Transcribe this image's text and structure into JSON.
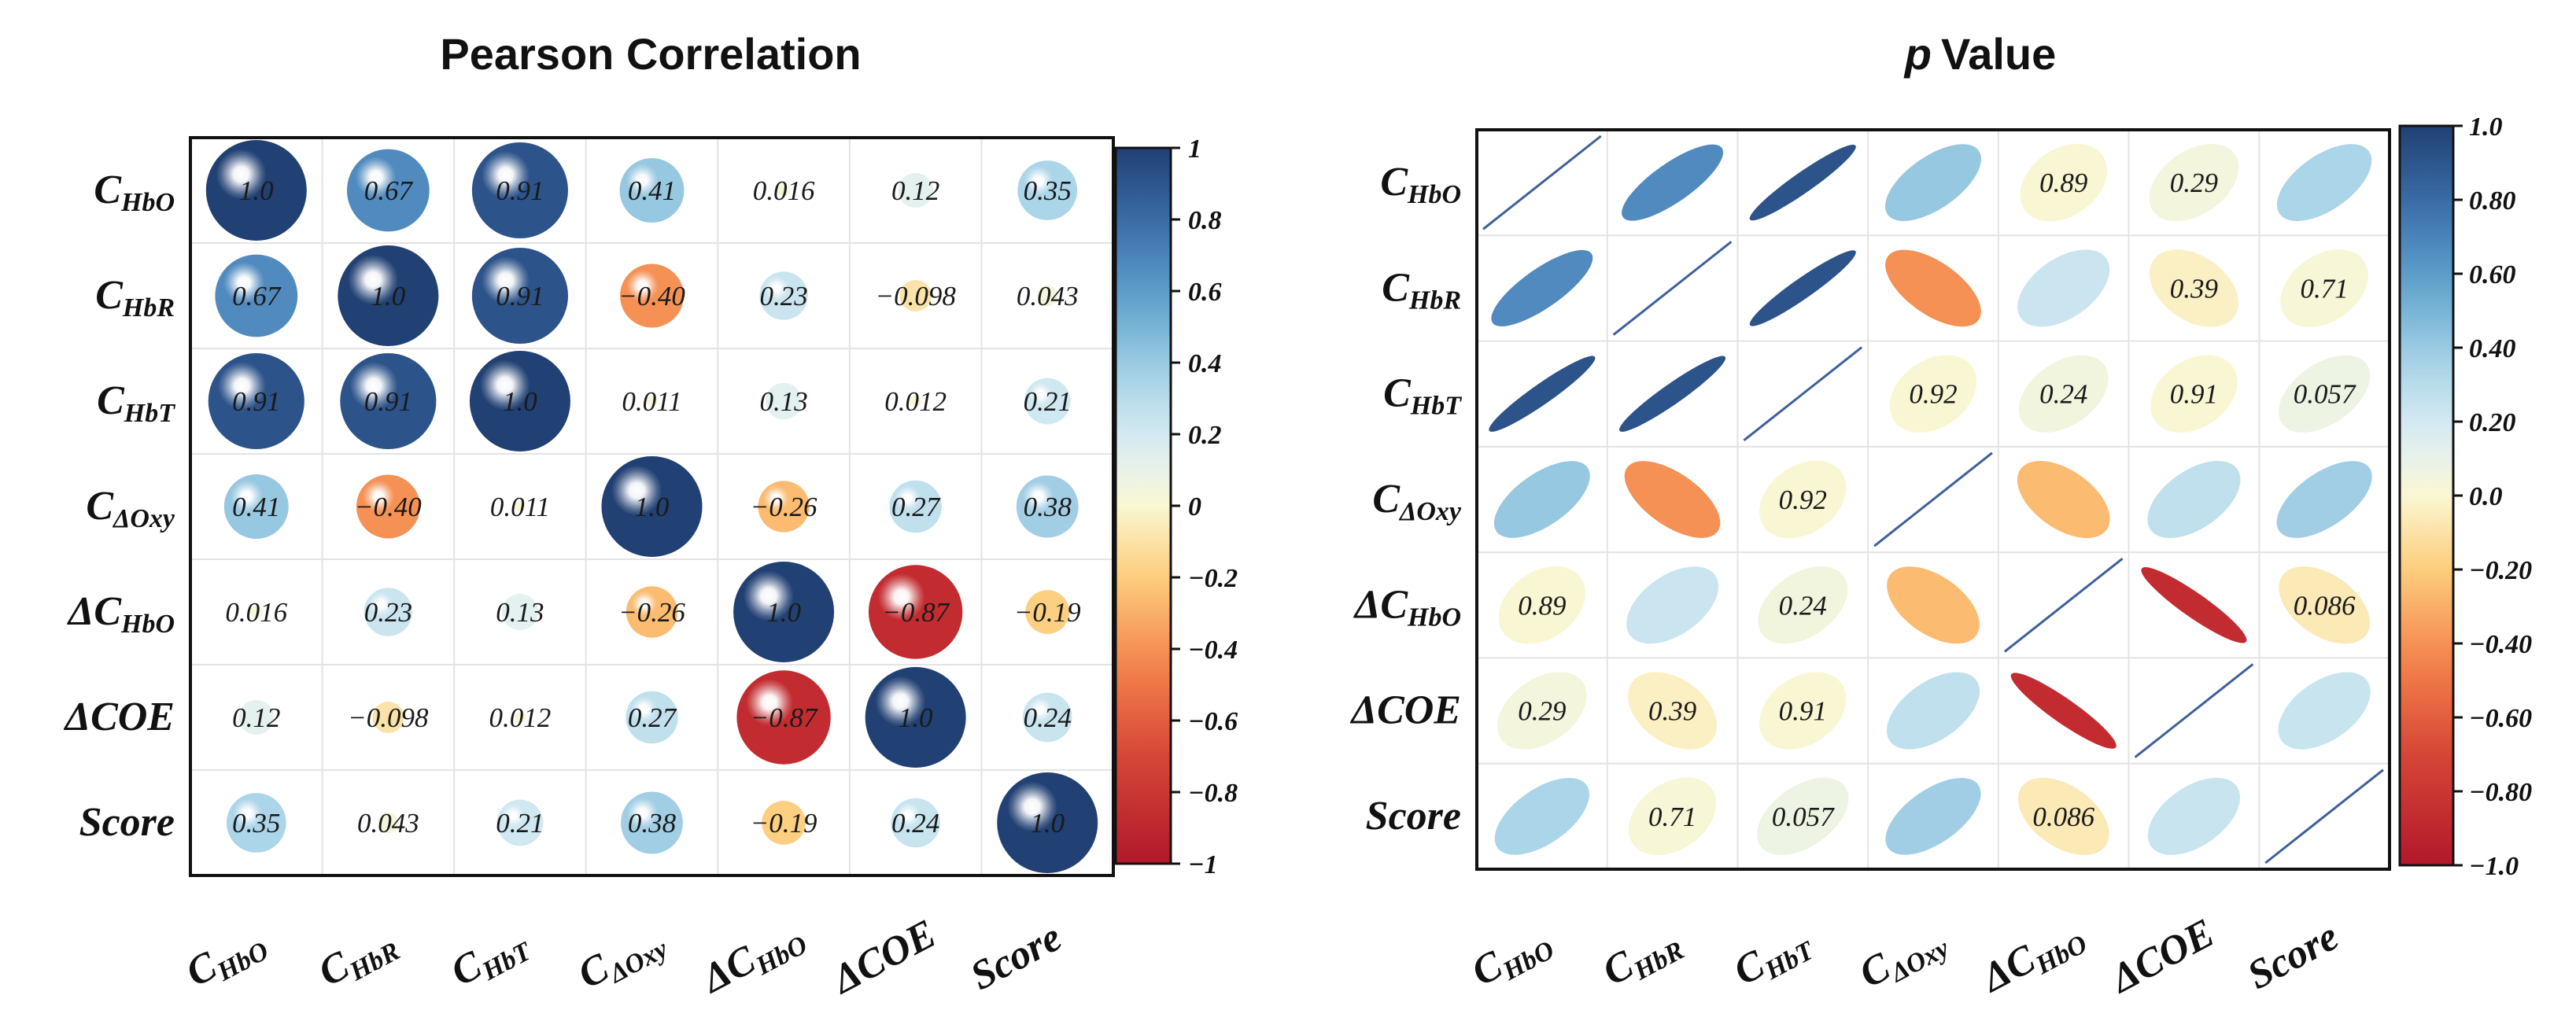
{
  "chart_data": [
    {
      "type": "heatmap",
      "title": "Pearson Correlation",
      "variables": [
        {
          "main": "C",
          "sub": "HbO",
          "prefix": ""
        },
        {
          "main": "C",
          "sub": "HbR",
          "prefix": ""
        },
        {
          "main": "C",
          "sub": "HbT",
          "prefix": ""
        },
        {
          "main": "C",
          "sub": "ΔOxy",
          "prefix": ""
        },
        {
          "main": "C",
          "sub": "HbO",
          "prefix": "Δ"
        },
        {
          "main": "ΔCOE",
          "sub": "",
          "prefix": ""
        },
        {
          "main": "Score",
          "sub": "",
          "prefix": ""
        }
      ],
      "values": [
        [
          1.0,
          0.67,
          0.91,
          0.41,
          0.016,
          0.12,
          0.35
        ],
        [
          0.67,
          1.0,
          0.91,
          -0.4,
          0.23,
          -0.098,
          0.043
        ],
        [
          0.91,
          0.91,
          1.0,
          0.011,
          0.13,
          0.012,
          0.21
        ],
        [
          0.41,
          -0.4,
          0.011,
          1.0,
          -0.26,
          0.27,
          0.38
        ],
        [
          0.016,
          0.23,
          0.13,
          -0.26,
          1.0,
          -0.87,
          -0.19
        ],
        [
          0.12,
          -0.098,
          0.012,
          0.27,
          -0.87,
          1.0,
          0.24
        ],
        [
          0.35,
          0.043,
          0.21,
          0.38,
          -0.19,
          0.24,
          1.0
        ]
      ],
      "labels": [
        [
          "1.0",
          "0.67",
          "0.91",
          "0.41",
          "0.016",
          "0.12",
          "0.35"
        ],
        [
          "0.67",
          "1.0",
          "0.91",
          "−0.40",
          "0.23",
          "−0.098",
          "0.043"
        ],
        [
          "0.91",
          "0.91",
          "1.0",
          "0.011",
          "0.13",
          "0.012",
          "0.21"
        ],
        [
          "0.41",
          "−0.40",
          "0.011",
          "1.0",
          "−0.26",
          "0.27",
          "0.38"
        ],
        [
          "0.016",
          "0.23",
          "0.13",
          "−0.26",
          "1.0",
          "−0.87",
          "−0.19"
        ],
        [
          "0.12",
          "−0.098",
          "0.012",
          "0.27",
          "−0.87",
          "1.0",
          "0.24"
        ],
        [
          "0.35",
          "0.043",
          "0.21",
          "0.38",
          "−0.19",
          "0.24",
          "1.0"
        ]
      ],
      "colorbar": {
        "range": [
          -1,
          1
        ],
        "ticks": [
          "1",
          "0.8",
          "0.6",
          "0.4",
          "0.2",
          "0",
          "−0.2",
          "−0.4",
          "−0.6",
          "−0.8",
          "−1"
        ]
      }
    },
    {
      "type": "heatmap",
      "title_prefix": "p",
      "title": "Value",
      "variables": [
        {
          "main": "C",
          "sub": "HbO",
          "prefix": ""
        },
        {
          "main": "C",
          "sub": "HbR",
          "prefix": ""
        },
        {
          "main": "C",
          "sub": "HbT",
          "prefix": ""
        },
        {
          "main": "C",
          "sub": "ΔOxy",
          "prefix": ""
        },
        {
          "main": "C",
          "sub": "HbO",
          "prefix": "Δ"
        },
        {
          "main": "ΔCOE",
          "sub": "",
          "prefix": ""
        },
        {
          "main": "Score",
          "sub": "",
          "prefix": ""
        }
      ],
      "p_values": [
        [
          null,
          null,
          null,
          null,
          "0.89",
          "0.29",
          null
        ],
        [
          null,
          null,
          null,
          null,
          null,
          "0.39",
          "0.71"
        ],
        [
          null,
          null,
          null,
          "0.92",
          "0.24",
          "0.91",
          "0.057"
        ],
        [
          null,
          null,
          "0.92",
          null,
          null,
          null,
          null
        ],
        [
          "0.89",
          null,
          "0.24",
          null,
          null,
          null,
          "0.086"
        ],
        [
          "0.29",
          "0.39",
          "0.91",
          null,
          null,
          null,
          null
        ],
        [
          null,
          "0.71",
          "0.057",
          null,
          "0.086",
          null,
          null
        ]
      ],
      "colorbar": {
        "range": [
          -1.0,
          1.0
        ],
        "ticks": [
          "1.0",
          "0.80",
          "0.60",
          "0.40",
          "0.20",
          "0.0",
          "−0.20",
          "−0.40",
          "−0.60",
          "−0.80",
          "−1.0"
        ]
      }
    }
  ]
}
